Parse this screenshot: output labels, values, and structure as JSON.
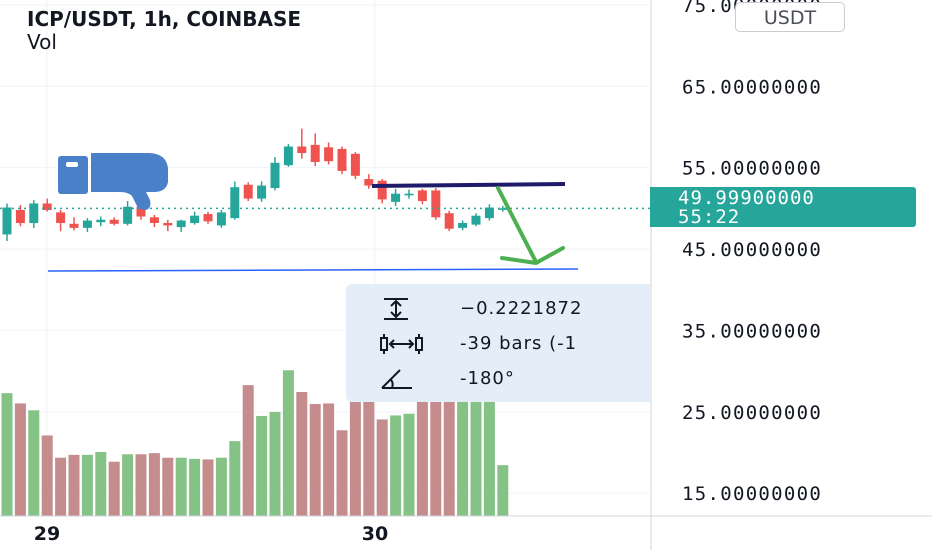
{
  "header": {
    "title": "ICP/USDT, 1h, COINBASE",
    "volume_label": "Vol",
    "currency_button": "USDT"
  },
  "price_badge": {
    "price": "49.99900000",
    "countdown": "55:22",
    "color": "#26a69a"
  },
  "measure_tooltip": {
    "price_change": "−0.2221872",
    "bars": "-39 bars (-1",
    "angle": "-180°",
    "icons": [
      "price-range-icon",
      "bars-range-icon",
      "angle-icon"
    ]
  },
  "annotations": {
    "thumbs_down_icon": "thumbs-down-icon",
    "arrow_color": "#4caf50",
    "trendline_color": "#1e1b6b",
    "support_line_color": "#2962ff"
  },
  "chart_data": {
    "type": "candlestick",
    "pair": "ICP/USDT",
    "interval": "1h",
    "exchange": "COINBASE",
    "colors": {
      "up": "#26a69a",
      "down": "#ef5350",
      "vol_up": "#85c285",
      "vol_down": "#c48c8c"
    },
    "y_axis": {
      "ticks": [
        "75.00000000",
        "65.00000000",
        "55.00000000",
        "45.00000000",
        "35.00000000",
        "25.00000000",
        "15.00000000"
      ],
      "range": [
        12.2,
        75.6
      ]
    },
    "x_axis": {
      "ticks": [
        "29",
        "30"
      ]
    },
    "last_price": 49.999,
    "candles": [
      {
        "o": 46.8,
        "h": 50.6,
        "l": 46.0,
        "c": 50.1
      },
      {
        "o": 49.8,
        "h": 50.4,
        "l": 47.8,
        "c": 48.2
      },
      {
        "o": 48.2,
        "h": 51.0,
        "l": 47.6,
        "c": 50.6
      },
      {
        "o": 50.6,
        "h": 51.2,
        "l": 49.6,
        "c": 49.8
      },
      {
        "o": 49.5,
        "h": 49.8,
        "l": 47.2,
        "c": 48.2
      },
      {
        "o": 48.1,
        "h": 48.9,
        "l": 47.3,
        "c": 47.6
      },
      {
        "o": 47.6,
        "h": 48.8,
        "l": 47.1,
        "c": 48.5
      },
      {
        "o": 48.3,
        "h": 49.0,
        "l": 47.8,
        "c": 48.6
      },
      {
        "o": 48.6,
        "h": 48.9,
        "l": 47.9,
        "c": 48.1
      },
      {
        "o": 48.1,
        "h": 50.9,
        "l": 47.9,
        "c": 50.2
      },
      {
        "o": 50.2,
        "h": 50.6,
        "l": 48.6,
        "c": 49.0
      },
      {
        "o": 48.9,
        "h": 49.2,
        "l": 47.7,
        "c": 48.2
      },
      {
        "o": 48.2,
        "h": 48.6,
        "l": 47.2,
        "c": 47.9
      },
      {
        "o": 47.7,
        "h": 48.6,
        "l": 47.1,
        "c": 48.5
      },
      {
        "o": 48.2,
        "h": 49.6,
        "l": 48.0,
        "c": 49.1
      },
      {
        "o": 49.3,
        "h": 49.6,
        "l": 48.1,
        "c": 48.4
      },
      {
        "o": 47.9,
        "h": 49.8,
        "l": 47.6,
        "c": 49.5
      },
      {
        "o": 48.8,
        "h": 53.3,
        "l": 48.6,
        "c": 52.6
      },
      {
        "o": 52.9,
        "h": 53.2,
        "l": 50.9,
        "c": 51.2
      },
      {
        "o": 51.2,
        "h": 53.3,
        "l": 50.8,
        "c": 52.8
      },
      {
        "o": 52.5,
        "h": 56.3,
        "l": 52.2,
        "c": 55.6
      },
      {
        "o": 55.3,
        "h": 57.9,
        "l": 55.1,
        "c": 57.6
      },
      {
        "o": 57.6,
        "h": 59.8,
        "l": 56.1,
        "c": 56.8
      },
      {
        "o": 57.8,
        "h": 59.2,
        "l": 55.2,
        "c": 55.7
      },
      {
        "o": 57.5,
        "h": 58.1,
        "l": 55.4,
        "c": 55.8
      },
      {
        "o": 57.3,
        "h": 57.6,
        "l": 54.2,
        "c": 54.6
      },
      {
        "o": 56.7,
        "h": 56.9,
        "l": 53.6,
        "c": 54.0
      },
      {
        "o": 53.6,
        "h": 54.2,
        "l": 52.4,
        "c": 52.8
      },
      {
        "o": 53.4,
        "h": 53.6,
        "l": 50.6,
        "c": 51.1
      },
      {
        "o": 50.8,
        "h": 52.4,
        "l": 50.3,
        "c": 51.8
      },
      {
        "o": 51.6,
        "h": 52.3,
        "l": 51.2,
        "c": 51.8
      },
      {
        "o": 52.2,
        "h": 52.4,
        "l": 50.5,
        "c": 50.9
      },
      {
        "o": 52.2,
        "h": 52.5,
        "l": 48.6,
        "c": 48.9
      },
      {
        "o": 49.4,
        "h": 49.7,
        "l": 47.2,
        "c": 47.5
      },
      {
        "o": 47.6,
        "h": 48.5,
        "l": 47.3,
        "c": 48.2
      },
      {
        "o": 48.0,
        "h": 49.4,
        "l": 47.8,
        "c": 49.1
      },
      {
        "o": 48.8,
        "h": 50.5,
        "l": 48.5,
        "c": 50.1
      },
      {
        "o": 49.9,
        "h": 50.3,
        "l": 49.6,
        "c": 50.0
      }
    ],
    "volumes": [
      21.5,
      19.7,
      18.5,
      14.1,
      10.2,
      10.7,
      10.7,
      11.2,
      9.5,
      10.8,
      10.8,
      11.0,
      10.2,
      10.2,
      10.0,
      9.9,
      10.2,
      13.1,
      22.9,
      17.5,
      18.2,
      25.5,
      21.7,
      19.6,
      19.7,
      15.0,
      23.0,
      20.8,
      16.9,
      17.6,
      17.9,
      21.8,
      21.8,
      20.9,
      20.5,
      20.1,
      23.6,
      8.9
    ],
    "volume_axis_max": 28.0
  }
}
